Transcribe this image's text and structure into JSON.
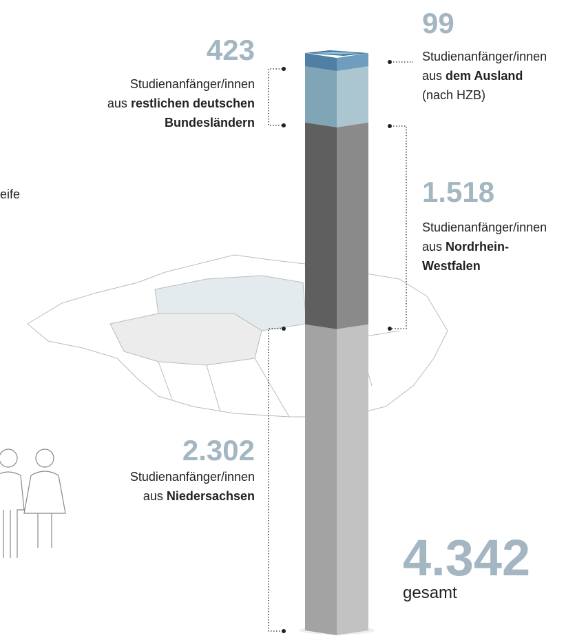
{
  "chart_data": {
    "type": "stacked-column",
    "fragment": "eife",
    "values": [
      2302,
      1518,
      423,
      99
    ],
    "value_labels": [
      "2.302",
      "1.518",
      "423",
      "99"
    ],
    "captions": [
      [
        {
          "normal": "Studienanfänger/innen"
        },
        {
          "normal": "aus",
          "bold": "Niedersachsen"
        }
      ],
      [
        {
          "normal": "Studienanfänger/innen"
        },
        {
          "normal": "aus",
          "bold": "Nordrhein-"
        },
        {
          "bold": "Westfalen"
        }
      ],
      [
        {
          "normal": "Studienanfänger/innen"
        },
        {
          "normal": "aus",
          "bold": "restlichen deutschen"
        },
        {
          "bold": "Bundesländern"
        }
      ],
      [
        {
          "normal": "Studienanfänger/innen"
        },
        {
          "normal": "aus",
          "bold": "dem Ausland"
        },
        {
          "normal": "(nach HZB)"
        }
      ]
    ],
    "colors": [
      [
        "#a3a3a3",
        "#c2c2c2"
      ],
      [
        "#5f5f5f",
        "#8a8a8a"
      ],
      [
        "#7fa5b6",
        "#abc6d1"
      ],
      [
        "#4f7fa3",
        "#6f9dbd"
      ]
    ],
    "total": 4342,
    "total_label": "4.342",
    "total_caption": "gesamt"
  }
}
